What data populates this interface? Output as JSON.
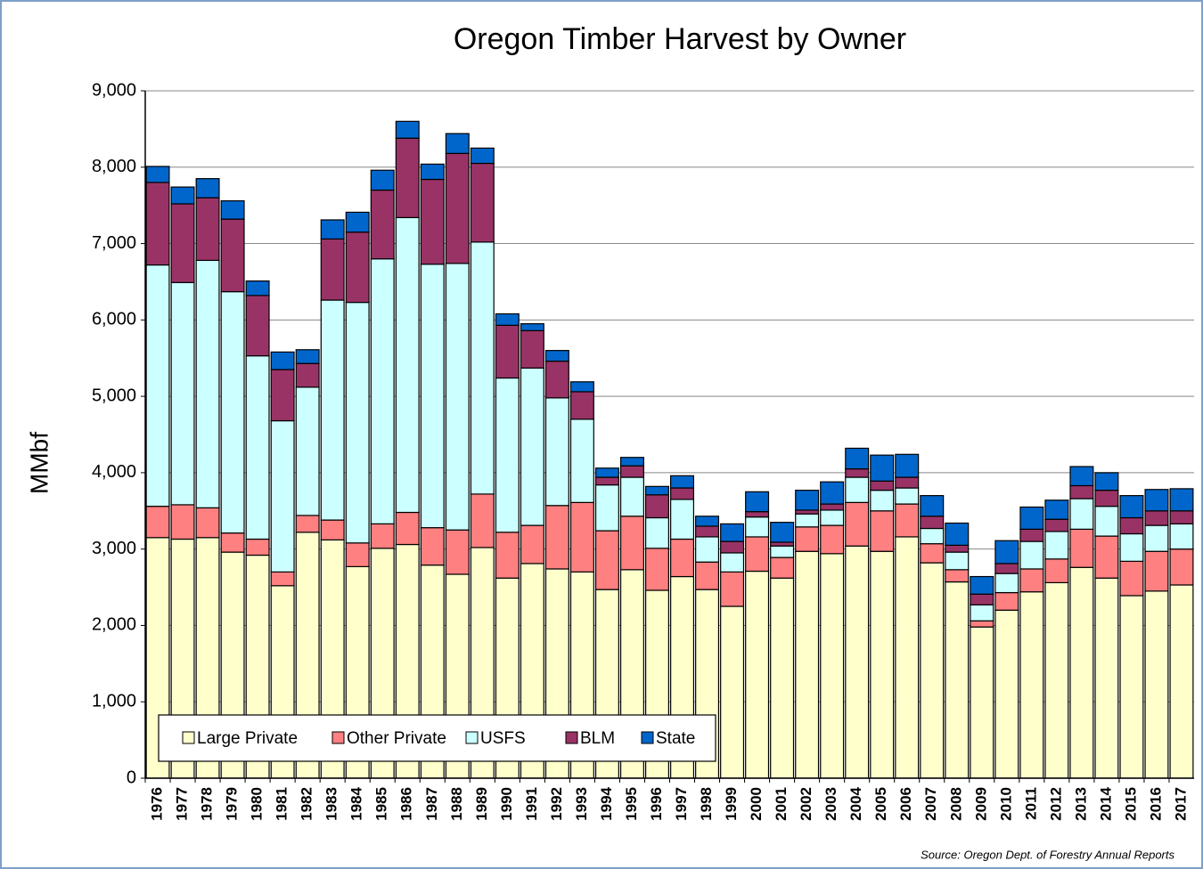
{
  "chart_data": {
    "type": "stacked_bar",
    "title": "Oregon Timber Harvest by Owner",
    "y_label": "MMbf",
    "source": "Source:  Oregon Dept. of Forestry Annual Reports",
    "categories": [
      "1976",
      "1977",
      "1978",
      "1979",
      "1980",
      "1981",
      "1982",
      "1983",
      "1984",
      "1985",
      "1986",
      "1987",
      "1988",
      "1989",
      "1990",
      "1991",
      "1992",
      "1993",
      "1994",
      "1995",
      "1996",
      "1997",
      "1998",
      "1999",
      "2000",
      "2001",
      "2002",
      "2003",
      "2004",
      "2005",
      "2006",
      "2007",
      "2008",
      "2009",
      "2010",
      "2011",
      "2012",
      "2013",
      "2014",
      "2015",
      "2016",
      "2017"
    ],
    "series": [
      {
        "name": "Large Private",
        "color": "#ffffcc",
        "values": [
          3150,
          3130,
          3150,
          2960,
          2920,
          2520,
          3220,
          3120,
          2770,
          3010,
          3060,
          2790,
          2670,
          3020,
          2620,
          2810,
          2740,
          2700,
          2470,
          2730,
          2460,
          2640,
          2470,
          2250,
          2710,
          2620,
          2970,
          2940,
          3040,
          2970,
          3160,
          2820,
          2570,
          1980,
          2200,
          2440,
          2560,
          2760,
          2620,
          2390,
          2450,
          2530
        ]
      },
      {
        "name": "Other Private",
        "color": "#ff8080",
        "values": [
          410,
          450,
          390,
          250,
          210,
          180,
          220,
          260,
          310,
          320,
          420,
          490,
          580,
          700,
          600,
          500,
          830,
          910,
          770,
          700,
          550,
          490,
          360,
          450,
          450,
          270,
          320,
          370,
          570,
          530,
          430,
          250,
          160,
          80,
          230,
          300,
          310,
          500,
          550,
          450,
          520,
          470
        ]
      },
      {
        "name": "USFS",
        "color": "#ccffff",
        "values": [
          3160,
          2910,
          3240,
          3160,
          2400,
          1980,
          1680,
          2880,
          3150,
          3470,
          3860,
          3450,
          3490,
          3300,
          2020,
          2060,
          1410,
          1090,
          600,
          510,
          400,
          520,
          330,
          250,
          260,
          150,
          170,
          200,
          330,
          270,
          210,
          200,
          230,
          210,
          250,
          360,
          360,
          400,
          390,
          360,
          340,
          330
        ]
      },
      {
        "name": "BLM",
        "color": "#993366",
        "values": [
          1080,
          1030,
          820,
          950,
          790,
          670,
          310,
          800,
          920,
          900,
          1040,
          1110,
          1440,
          1030,
          690,
          490,
          480,
          360,
          100,
          150,
          300,
          150,
          140,
          150,
          70,
          50,
          50,
          80,
          110,
          120,
          140,
          160,
          90,
          140,
          130,
          160,
          160,
          170,
          210,
          210,
          190,
          170
        ]
      },
      {
        "name": "State",
        "color": "#0066cc",
        "values": [
          210,
          220,
          250,
          240,
          190,
          230,
          180,
          250,
          260,
          260,
          220,
          200,
          260,
          200,
          150,
          90,
          140,
          130,
          120,
          110,
          110,
          160,
          130,
          230,
          260,
          260,
          260,
          290,
          270,
          340,
          300,
          270,
          290,
          230,
          300,
          290,
          250,
          250,
          230,
          290,
          280,
          290
        ]
      }
    ],
    "ylim": [
      0,
      9000
    ],
    "yticks": [
      0,
      {
        "value": 1000,
        "label": "1,000"
      },
      {
        "value": 2000,
        "label": "2,000"
      },
      {
        "value": 3000,
        "label": "3,000"
      },
      {
        "value": 4000,
        "label": "4,000"
      },
      {
        "value": 5000,
        "label": "5,000"
      },
      {
        "value": 6000,
        "label": "6,000"
      },
      {
        "value": 7000,
        "label": "7,000"
      },
      {
        "value": 8000,
        "label": "8,000"
      },
      {
        "value": 9000,
        "label": "9,000"
      }
    ],
    "grid": true,
    "legend": "lower left"
  }
}
